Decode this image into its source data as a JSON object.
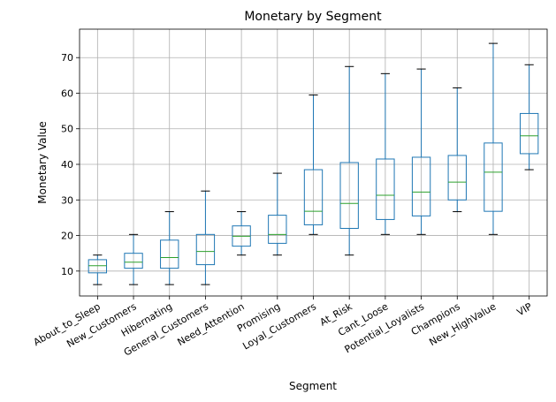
{
  "chart_data": {
    "type": "boxplot",
    "title": "Monetary by Segment",
    "xlabel": "Segment",
    "ylabel": "Monetary Value",
    "ylim": [
      3,
      78
    ],
    "yticks": [
      10,
      20,
      30,
      40,
      50,
      60,
      70
    ],
    "grid": true,
    "box_color": "#1f77b4",
    "median_color": "#2ca02c",
    "whisker_color": "#000000",
    "categories": [
      "About_to_Sleep",
      "New_Customers",
      "Hibernating",
      "General_Customers",
      "Need_Attention",
      "Promising",
      "Loyal_Customers",
      "At_Risk",
      "Cant_Loose",
      "Potential_Loyalists",
      "Champions",
      "New_HighValue",
      "VIP"
    ],
    "boxes": [
      {
        "whislo": 6.2,
        "q1": 9.5,
        "med": 11.5,
        "q3": 13.2,
        "whishi": 14.5
      },
      {
        "whislo": 6.2,
        "q1": 10.8,
        "med": 12.5,
        "q3": 15.0,
        "whishi": 20.3
      },
      {
        "whislo": 6.2,
        "q1": 10.8,
        "med": 13.8,
        "q3": 18.7,
        "whishi": 26.7
      },
      {
        "whislo": 6.2,
        "q1": 11.8,
        "med": 15.5,
        "q3": 20.3,
        "whishi": 32.5
      },
      {
        "whislo": 14.5,
        "q1": 17.0,
        "med": 19.8,
        "q3": 22.7,
        "whishi": 26.7
      },
      {
        "whislo": 14.5,
        "q1": 17.8,
        "med": 20.3,
        "q3": 25.7,
        "whishi": 37.5
      },
      {
        "whislo": 20.3,
        "q1": 23.0,
        "med": 26.8,
        "q3": 38.5,
        "whishi": 59.5
      },
      {
        "whislo": 14.5,
        "q1": 22.0,
        "med": 29.0,
        "q3": 40.5,
        "whishi": 67.5
      },
      {
        "whislo": 20.3,
        "q1": 24.5,
        "med": 31.3,
        "q3": 41.5,
        "whishi": 65.5
      },
      {
        "whislo": 20.3,
        "q1": 25.5,
        "med": 32.2,
        "q3": 42.0,
        "whishi": 66.8
      },
      {
        "whislo": 26.7,
        "q1": 30.0,
        "med": 35.0,
        "q3": 42.5,
        "whishi": 61.5
      },
      {
        "whislo": 20.3,
        "q1": 26.8,
        "med": 37.8,
        "q3": 46.0,
        "whishi": 74.0
      },
      {
        "whislo": 38.5,
        "q1": 43.0,
        "med": 48.0,
        "q3": 54.3,
        "whishi": 68.0
      }
    ]
  }
}
